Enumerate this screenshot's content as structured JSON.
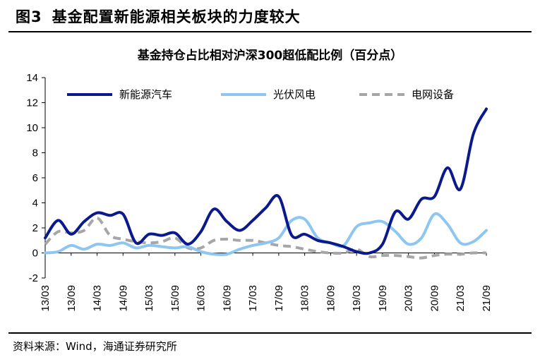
{
  "figure": {
    "number": "图3",
    "title": "基金配置新能源相关板块的力度较大"
  },
  "source": "资料来源：Wind，海通证券研究所",
  "chart_data": {
    "type": "line",
    "title": "基金持仓占比相对沪深300超低配比例（百分点）",
    "ylim": [
      -2,
      14
    ],
    "yticks": [
      -2,
      0,
      2,
      4,
      6,
      8,
      10,
      12,
      14
    ],
    "x_tick_labels": [
      "13/03",
      "13/09",
      "14/03",
      "14/09",
      "15/03",
      "15/09",
      "16/03",
      "16/09",
      "17/03",
      "17/09",
      "18/03",
      "18/09",
      "19/03",
      "19/09",
      "20/03",
      "20/09",
      "21/03",
      "21/09"
    ],
    "x": [
      "13/03",
      "13/06",
      "13/09",
      "13/12",
      "14/03",
      "14/06",
      "14/09",
      "14/12",
      "15/03",
      "15/06",
      "15/09",
      "15/12",
      "16/03",
      "16/06",
      "16/09",
      "16/12",
      "17/03",
      "17/06",
      "17/09",
      "17/12",
      "18/03",
      "18/06",
      "18/09",
      "18/12",
      "19/03",
      "19/06",
      "19/09",
      "19/12",
      "20/03",
      "20/06",
      "20/09",
      "20/12",
      "21/03",
      "21/06",
      "21/09"
    ],
    "legend_position": "top",
    "grid": false,
    "series": [
      {
        "name": "新能源汽车",
        "color": "#0a1a8c",
        "style": "solid",
        "values": [
          1.2,
          2.6,
          1.5,
          2.5,
          3.2,
          3.0,
          3.1,
          0.8,
          1.5,
          1.4,
          1.6,
          0.7,
          1.7,
          3.5,
          2.5,
          1.8,
          2.6,
          3.6,
          4.5,
          1.4,
          1.5,
          1.0,
          0.8,
          0.5,
          0.1,
          0.0,
          0.7,
          3.3,
          2.7,
          4.3,
          4.5,
          6.8,
          5.1,
          9.5,
          11.5
        ]
      },
      {
        "name": "光伏风电",
        "color": "#8ec6f2",
        "style": "solid",
        "values": [
          0.0,
          0.1,
          0.6,
          0.3,
          0.7,
          0.6,
          0.8,
          0.4,
          0.6,
          0.5,
          0.4,
          0.5,
          0.1,
          -0.1,
          -0.1,
          0.3,
          0.6,
          0.8,
          1.2,
          2.6,
          2.7,
          1.2,
          0.8,
          0.6,
          2.1,
          2.4,
          2.5,
          1.7,
          0.7,
          1.2,
          3.1,
          2.3,
          0.8,
          0.9,
          1.8
        ]
      },
      {
        "name": "电网设备",
        "color": "#a6a6a6",
        "style": "dashed",
        "values": [
          0.7,
          1.7,
          1.6,
          1.8,
          2.8,
          1.4,
          1.1,
          0.9,
          0.8,
          0.9,
          1.2,
          0.4,
          0.4,
          1.0,
          1.1,
          1.0,
          1.0,
          0.8,
          0.6,
          0.5,
          0.3,
          0.1,
          0.0,
          0.0,
          0.3,
          -0.3,
          -0.2,
          -0.2,
          -0.3,
          -0.4,
          -0.2,
          -0.1,
          -0.1,
          0.0,
          0.0
        ]
      }
    ]
  }
}
